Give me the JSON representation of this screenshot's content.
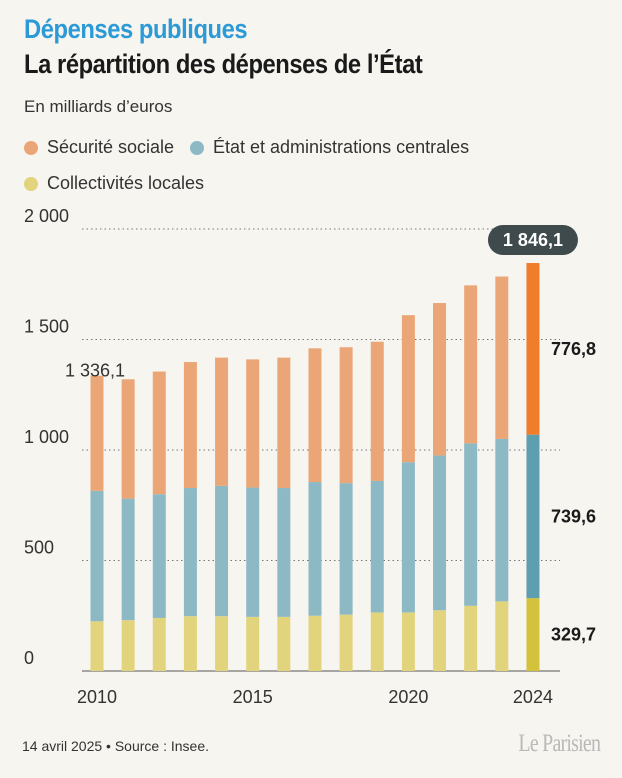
{
  "header": {
    "kicker": "Dépenses publiques",
    "title": "La répartition des dépenses de l’État",
    "unit": "En milliards d’euros"
  },
  "legend": [
    {
      "label": "Sécurité sociale",
      "color": "#eba677"
    },
    {
      "label": "État et administrations centrales",
      "color": "#8db9c5"
    },
    {
      "label": "Collectivités locales",
      "color": "#e2d47d"
    }
  ],
  "chart_data": {
    "type": "bar",
    "stacked": true,
    "x": [
      2010,
      2011,
      2012,
      2013,
      2014,
      2015,
      2016,
      2017,
      2018,
      2019,
      2020,
      2021,
      2022,
      2023,
      2024
    ],
    "x_tick_labels": [
      "2010",
      "2015",
      "2020",
      "2024"
    ],
    "y_tick_labels": [
      "0",
      "500",
      "1 000",
      "1 500",
      "2 000"
    ],
    "ylim": [
      0,
      2000
    ],
    "grid": "horizontal-dotted",
    "series": [
      {
        "name": "Collectivités locales",
        "color": "#e2d47d",
        "highlight_color": "#d3c23c",
        "values": [
          225,
          230,
          240,
          248,
          248,
          245,
          245,
          250,
          255,
          265,
          265,
          275,
          295,
          315,
          329.7
        ]
      },
      {
        "name": "État et administrations centrales",
        "color": "#8db9c5",
        "highlight_color": "#5d9fae",
        "values": [
          590,
          550,
          560,
          580,
          590,
          585,
          583,
          605,
          595,
          595,
          680,
          700,
          735,
          735,
          739.6
        ]
      },
      {
        "name": "Sécurité sociale",
        "color": "#eba677",
        "highlight_color": "#ef7d2c",
        "values": [
          521.1,
          540,
          555,
          570,
          580,
          580,
          590,
          605,
          615,
          630,
          665,
          690,
          715,
          735,
          776.8
        ]
      }
    ],
    "annotations": {
      "first_total": "1 336,1",
      "last_total": "1 846,1",
      "last_segments": [
        "329,7",
        "739,6",
        "776,8"
      ]
    }
  },
  "footer": {
    "source": "14 avril 2025 • Source : Insee.",
    "logo": "Le Parisien"
  }
}
